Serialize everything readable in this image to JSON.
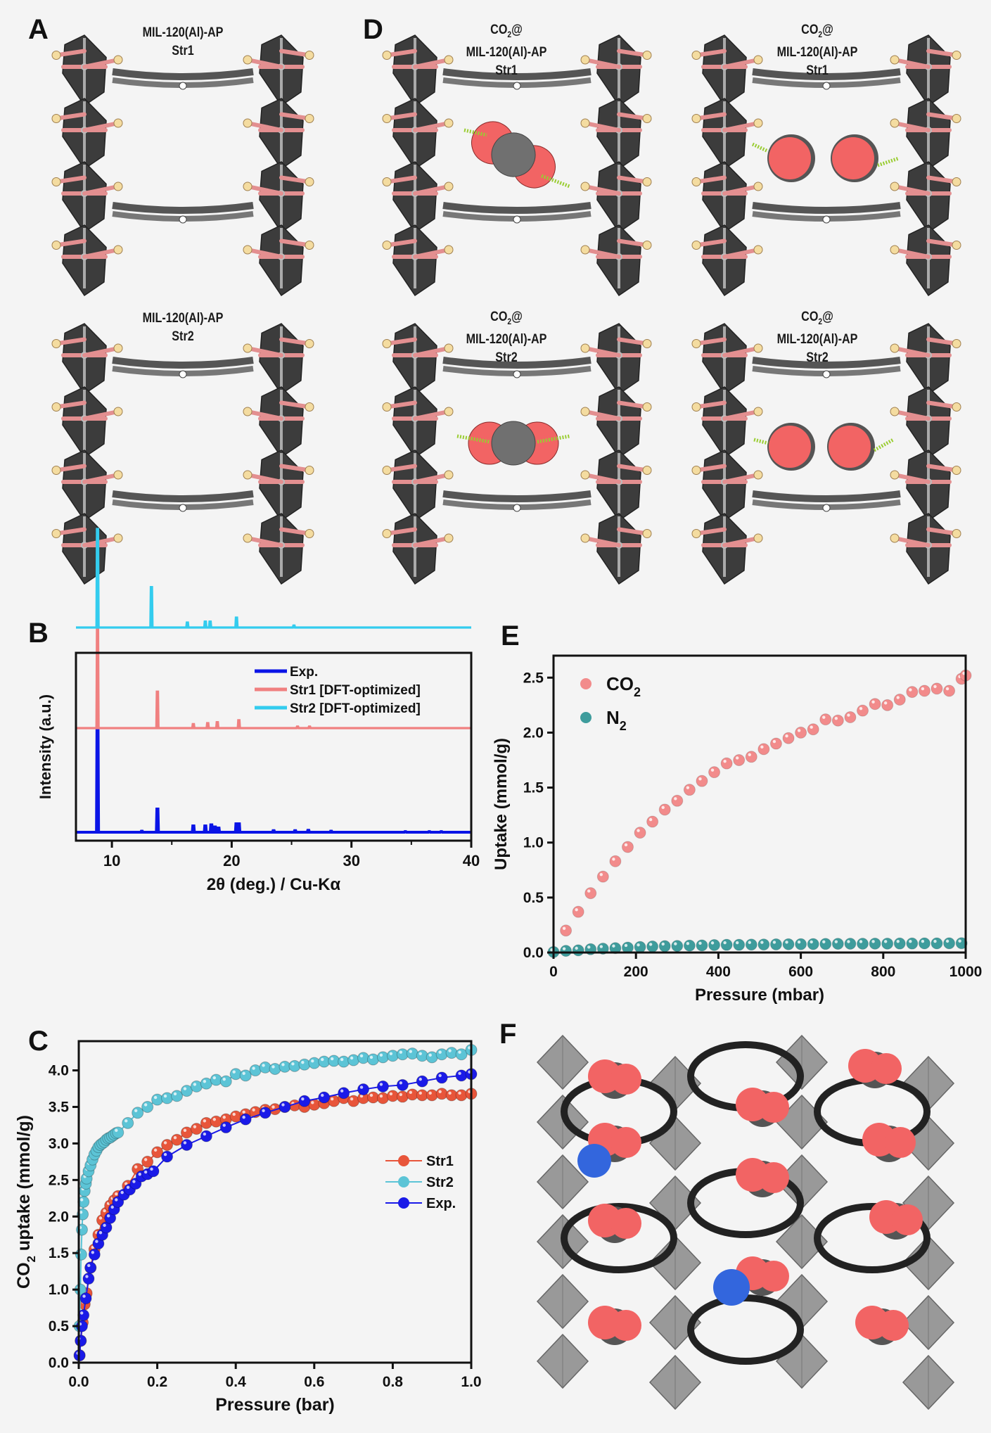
{
  "panels": {
    "A": {
      "letter": "A",
      "structures": [
        {
          "label_line1": "MIL-120(Al)-AP",
          "label_line2": "Str1"
        },
        {
          "label_line1": "MIL-120(Al)-AP",
          "label_line2": "Str2"
        }
      ]
    },
    "D": {
      "letter": "D",
      "structures": [
        {
          "label_co2": "CO",
          "label_sub": "2",
          "label_at": "@",
          "label_line2": "MIL-120(Al)-AP",
          "label_line3": "Str1",
          "guest_view": "side-on CO2"
        },
        {
          "label_co2": "CO",
          "label_sub": "2",
          "label_at": "@",
          "label_line2": "MIL-120(Al)-AP",
          "label_line3": "Str1",
          "guest_view": "end-on CO2"
        },
        {
          "label_co2": "CO",
          "label_sub": "2",
          "label_at": "@",
          "label_line2": "MIL-120(Al)-AP",
          "label_line3": "Str2",
          "guest_view": "side-on CO2"
        },
        {
          "label_co2": "CO",
          "label_sub": "2",
          "label_at": "@",
          "label_line2": "MIL-120(Al)-AP",
          "label_line3": "Str2",
          "guest_view": "end-on CO2"
        }
      ]
    },
    "F": {
      "letter": "F"
    }
  },
  "colors": {
    "exp_blue": "#0a14e6",
    "str1_red": "#f08080",
    "str2_cyan": "#33ccee",
    "c_str1": "#e8553a",
    "c_str2": "#5cc4d6",
    "c_exp": "#1a1ae8",
    "e_co2": "#f28b8b",
    "e_n2": "#3e9c9c",
    "oxygen": "#f26464",
    "carbon": "#707070",
    "nitrogen": "#3366dd",
    "framework_pink": "#e38f90",
    "framework_dark": "#3c3c3c",
    "hydrogen": "#f4dca0"
  },
  "chart_data": [
    {
      "id": "B",
      "letter": "B",
      "type": "line",
      "title": "",
      "xlabel": "2θ (deg.) / Cu-Kα",
      "ylabel": "Intensity (a.u.)",
      "xlim": [
        7,
        40
      ],
      "xticks": [
        10,
        20,
        30,
        40
      ],
      "yticks": [],
      "legend_position": "top-right",
      "series": [
        {
          "name": "Exp.",
          "color_key": "exp_blue",
          "offset": 0,
          "peaks": [
            [
              8.8,
              100
            ],
            [
              13.8,
              22
            ],
            [
              12.5,
              1
            ],
            [
              16.8,
              6
            ],
            [
              17.8,
              6
            ],
            [
              18.3,
              7
            ],
            [
              18.6,
              5
            ],
            [
              18.9,
              4
            ],
            [
              20.4,
              8
            ],
            [
              20.6,
              8
            ],
            [
              23.5,
              1.5
            ],
            [
              25.3,
              1.5
            ],
            [
              26.4,
              1.8
            ],
            [
              28.3,
              1
            ],
            [
              34.5,
              0.6
            ],
            [
              36.5,
              0.6
            ],
            [
              37.5,
              0.6
            ]
          ]
        },
        {
          "name": "Str1 [DFT-optimized]",
          "color_key": "str1_red",
          "offset": 1,
          "peaks": [
            [
              8.8,
              100
            ],
            [
              13.8,
              37
            ],
            [
              16.8,
              4
            ],
            [
              18.0,
              5
            ],
            [
              18.8,
              6
            ],
            [
              20.6,
              8
            ],
            [
              25.5,
              1.5
            ],
            [
              26.5,
              1.5
            ]
          ]
        },
        {
          "name": "Str2 [DFT-optimized]",
          "color_key": "str2_cyan",
          "offset": 2,
          "peaks": [
            [
              8.8,
              100
            ],
            [
              13.3,
              41
            ],
            [
              16.3,
              5
            ],
            [
              17.8,
              6
            ],
            [
              18.2,
              6
            ],
            [
              20.4,
              10
            ],
            [
              25.2,
              2
            ]
          ]
        }
      ]
    },
    {
      "id": "C",
      "letter": "C",
      "type": "line",
      "title": "",
      "xlabel": "Pressure (bar)",
      "ylabel_main": "CO",
      "ylabel_sub": "2",
      "ylabel_rest": " uptake (mmol/g)",
      "xlim": [
        0,
        1.0
      ],
      "ylim": [
        0,
        4.4
      ],
      "xticks": [
        "0.0",
        "0.2",
        "0.4",
        "0.6",
        "0.8",
        "1.0"
      ],
      "yticks": [
        "0.0",
        "0.5",
        "1.0",
        "1.5",
        "2.0",
        "2.5",
        "3.0",
        "3.5",
        "4.0"
      ],
      "legend_position": "center-right",
      "series": [
        {
          "name": "Str1",
          "color_key": "c_str1",
          "x": [
            0.002,
            0.005,
            0.01,
            0.015,
            0.02,
            0.03,
            0.04,
            0.05,
            0.06,
            0.07,
            0.08,
            0.09,
            0.1,
            0.125,
            0.15,
            0.175,
            0.2,
            0.225,
            0.25,
            0.275,
            0.3,
            0.325,
            0.35,
            0.375,
            0.4,
            0.425,
            0.45,
            0.475,
            0.5,
            0.525,
            0.55,
            0.575,
            0.6,
            0.625,
            0.65,
            0.675,
            0.7,
            0.725,
            0.75,
            0.775,
            0.8,
            0.825,
            0.85,
            0.875,
            0.9,
            0.925,
            0.95,
            0.975,
            1.0
          ],
          "y": [
            0.1,
            0.3,
            0.55,
            0.8,
            0.95,
            1.3,
            1.55,
            1.75,
            1.95,
            2.05,
            2.15,
            2.22,
            2.28,
            2.42,
            2.65,
            2.75,
            2.88,
            2.98,
            3.05,
            3.15,
            3.2,
            3.28,
            3.3,
            3.33,
            3.37,
            3.4,
            3.43,
            3.46,
            3.47,
            3.5,
            3.52,
            3.5,
            3.53,
            3.55,
            3.58,
            3.62,
            3.58,
            3.62,
            3.63,
            3.62,
            3.65,
            3.64,
            3.67,
            3.66,
            3.66,
            3.68,
            3.66,
            3.66,
            3.68
          ]
        },
        {
          "name": "Str2",
          "color_key": "c_str2",
          "x": [
            0.002,
            0.004,
            0.006,
            0.008,
            0.01,
            0.012,
            0.015,
            0.018,
            0.02,
            0.025,
            0.03,
            0.035,
            0.04,
            0.045,
            0.05,
            0.055,
            0.06,
            0.065,
            0.07,
            0.075,
            0.08,
            0.085,
            0.09,
            0.095,
            0.1,
            0.125,
            0.15,
            0.175,
            0.2,
            0.225,
            0.25,
            0.275,
            0.3,
            0.325,
            0.35,
            0.375,
            0.4,
            0.425,
            0.45,
            0.475,
            0.5,
            0.525,
            0.55,
            0.575,
            0.6,
            0.625,
            0.65,
            0.675,
            0.7,
            0.725,
            0.75,
            0.775,
            0.8,
            0.825,
            0.85,
            0.875,
            0.9,
            0.925,
            0.95,
            0.975,
            1.0
          ],
          "y": [
            0.5,
            1.0,
            1.48,
            1.82,
            2.03,
            2.2,
            2.35,
            2.45,
            2.52,
            2.62,
            2.7,
            2.78,
            2.85,
            2.9,
            2.95,
            2.98,
            3.0,
            3.02,
            3.05,
            3.07,
            3.08,
            3.1,
            3.12,
            3.14,
            3.15,
            3.28,
            3.42,
            3.5,
            3.6,
            3.62,
            3.65,
            3.72,
            3.78,
            3.82,
            3.87,
            3.85,
            3.95,
            3.93,
            4.0,
            4.04,
            4.02,
            4.05,
            4.06,
            4.08,
            4.1,
            4.12,
            4.13,
            4.12,
            4.14,
            4.17,
            4.15,
            4.18,
            4.2,
            4.22,
            4.23,
            4.2,
            4.18,
            4.22,
            4.24,
            4.22,
            4.28
          ]
        },
        {
          "name": "Exp.",
          "color_key": "c_exp",
          "x": [
            0.002,
            0.005,
            0.008,
            0.012,
            0.018,
            0.025,
            0.03,
            0.04,
            0.05,
            0.06,
            0.07,
            0.08,
            0.09,
            0.1,
            0.115,
            0.13,
            0.145,
            0.16,
            0.175,
            0.19,
            0.225,
            0.275,
            0.325,
            0.375,
            0.425,
            0.475,
            0.525,
            0.575,
            0.625,
            0.675,
            0.725,
            0.775,
            0.825,
            0.875,
            0.925,
            0.975,
            1.0
          ],
          "y": [
            0.1,
            0.3,
            0.5,
            0.65,
            0.88,
            1.15,
            1.3,
            1.48,
            1.63,
            1.75,
            1.85,
            1.98,
            2.1,
            2.2,
            2.3,
            2.37,
            2.45,
            2.55,
            2.58,
            2.62,
            2.82,
            2.98,
            3.1,
            3.22,
            3.33,
            3.42,
            3.5,
            3.58,
            3.63,
            3.69,
            3.74,
            3.78,
            3.8,
            3.85,
            3.9,
            3.93,
            3.95
          ]
        }
      ]
    },
    {
      "id": "E",
      "letter": "E",
      "type": "scatter",
      "title": "",
      "xlabel": "Pressure (mbar)",
      "ylabel": "Uptake (mmol/g)",
      "xlim": [
        0,
        1000
      ],
      "ylim": [
        0,
        2.7
      ],
      "xticks": [
        "0",
        "200",
        "400",
        "600",
        "800",
        "1000"
      ],
      "yticks": [
        "0.0",
        "0.5",
        "1.0",
        "1.5",
        "2.0",
        "2.5"
      ],
      "legend_position": "top-left",
      "series": [
        {
          "name_main": "CO",
          "name_sub": "2",
          "color_key": "e_co2",
          "x": [
            30,
            60,
            90,
            120,
            150,
            180,
            210,
            240,
            270,
            300,
            330,
            360,
            390,
            420,
            450,
            480,
            510,
            540,
            570,
            600,
            630,
            660,
            690,
            720,
            750,
            780,
            810,
            840,
            870,
            900,
            930,
            960,
            990,
            1000
          ],
          "y": [
            0.2,
            0.37,
            0.54,
            0.69,
            0.83,
            0.96,
            1.09,
            1.19,
            1.3,
            1.38,
            1.48,
            1.56,
            1.64,
            1.72,
            1.75,
            1.78,
            1.85,
            1.9,
            1.95,
            2.0,
            2.03,
            2.12,
            2.11,
            2.14,
            2.2,
            2.26,
            2.25,
            2.3,
            2.37,
            2.38,
            2.4,
            2.38,
            2.49,
            2.52
          ]
        },
        {
          "name_main": "N",
          "name_sub": "2",
          "color_key": "e_n2",
          "x": [
            0,
            30,
            60,
            90,
            120,
            150,
            180,
            210,
            240,
            270,
            300,
            330,
            360,
            390,
            420,
            450,
            480,
            510,
            540,
            570,
            600,
            630,
            660,
            690,
            720,
            750,
            780,
            810,
            840,
            870,
            900,
            930,
            960,
            990
          ],
          "y": [
            0.005,
            0.015,
            0.02,
            0.03,
            0.035,
            0.04,
            0.045,
            0.05,
            0.055,
            0.058,
            0.06,
            0.063,
            0.065,
            0.068,
            0.07,
            0.07,
            0.072,
            0.073,
            0.074,
            0.075,
            0.076,
            0.077,
            0.078,
            0.079,
            0.08,
            0.08,
            0.081,
            0.081,
            0.082,
            0.082,
            0.083,
            0.083,
            0.084,
            0.085
          ]
        }
      ]
    }
  ]
}
